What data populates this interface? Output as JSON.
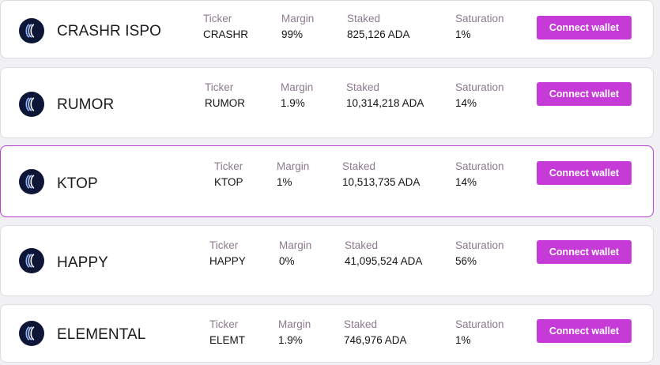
{
  "labels": {
    "ticker": "Ticker",
    "margin": "Margin",
    "staked": "Staked",
    "saturation": "Saturation",
    "connect": "Connect wallet"
  },
  "pools": [
    {
      "name": "CRASHR ISPO",
      "ticker": "CRASHR",
      "margin": "99%",
      "staked": "825,126 ADA",
      "saturation": "1%",
      "icon": "pool-logo-icon"
    },
    {
      "name": "RUMOR",
      "ticker": "RUMOR",
      "margin": "1.9%",
      "staked": "10,314,218 ADA",
      "saturation": "14%",
      "icon": "pool-logo-icon"
    },
    {
      "name": "KTOP",
      "ticker": "KTOP",
      "margin": "1%",
      "staked": "10,513,735 ADA",
      "saturation": "14%",
      "icon": "pool-logo-icon"
    },
    {
      "name": "HAPPY",
      "ticker": "HAPPY",
      "margin": "0%",
      "staked": "41,095,524 ADA",
      "saturation": "56%",
      "icon": "pool-logo-icon"
    },
    {
      "name": "ELEMENTAL",
      "ticker": "ELEMT",
      "margin": "1.9%",
      "staked": "746,976 ADA",
      "saturation": "1%",
      "icon": "pool-logo-icon"
    }
  ],
  "colors": {
    "accent": "#c63ad8",
    "active_border": "#b83cd6",
    "label": "#8d7a8d",
    "logo_bg": "#0d1636"
  }
}
